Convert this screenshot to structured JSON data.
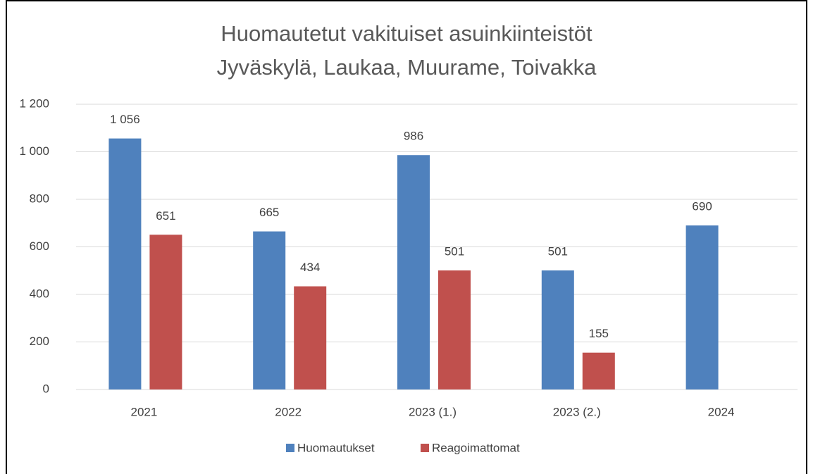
{
  "chart_data": {
    "type": "bar",
    "title": "Huomautetut vakituiset asuinkiinteistöt",
    "subtitle": "Jyväskylä, Laukaa, Muurame, Toivakka",
    "categories": [
      "2021",
      "2022",
      "2023 (1.)",
      "2023 (2.)",
      "2024"
    ],
    "series": [
      {
        "name": "Huomautukset",
        "color": "#4f81bd",
        "values": [
          1056,
          665,
          986,
          501,
          690
        ],
        "value_labels": [
          "1 056",
          "665",
          "986",
          "501",
          "690"
        ]
      },
      {
        "name": "Reagoimattomat",
        "color": "#c0504d",
        "values": [
          651,
          434,
          501,
          155,
          null
        ]
      }
    ],
    "ylim": [
      0,
      1200
    ],
    "yticks": [
      0,
      200,
      400,
      600,
      800,
      {
        "value": 1000,
        "label": "1 000"
      },
      {
        "value": 1200,
        "label": "1 200"
      }
    ],
    "grid": true,
    "legend": "bottom"
  }
}
